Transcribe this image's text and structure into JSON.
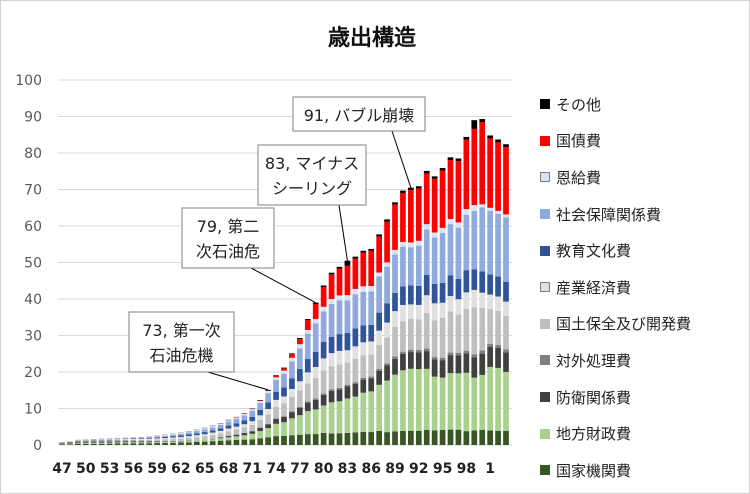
{
  "chart_data": {
    "type": "bar",
    "stacked": true,
    "title": "歳出構造",
    "ylim": [
      0,
      100
    ],
    "yticks": [
      0,
      10,
      20,
      30,
      40,
      50,
      60,
      70,
      80,
      90,
      100
    ],
    "years": [
      "47",
      "48",
      "49",
      "50",
      "51",
      "52",
      "53",
      "54",
      "55",
      "56",
      "57",
      "58",
      "59",
      "60",
      "61",
      "62",
      "63",
      "64",
      "65",
      "66",
      "67",
      "68",
      "69",
      "70",
      "71",
      "72",
      "73",
      "74",
      "75",
      "76",
      "77",
      "78",
      "79",
      "80",
      "81",
      "82",
      "83",
      "84",
      "85",
      "86",
      "87",
      "88",
      "89",
      "90",
      "91",
      "92",
      "93",
      "94",
      "95",
      "96",
      "97",
      "98",
      "99",
      "0",
      "1",
      "2",
      "3"
    ],
    "tick_labels": [
      "47",
      "50",
      "53",
      "56",
      "59",
      "62",
      "65",
      "68",
      "71",
      "74",
      "77",
      "80",
      "83",
      "86",
      "89",
      "92",
      "95",
      "98",
      "1"
    ],
    "tick_every": 3,
    "totals": [
      0.8,
      1.0,
      1.4,
      1.5,
      1.6,
      1.7,
      1.8,
      1.9,
      2.0,
      2.1,
      2.2,
      2.4,
      2.6,
      2.8,
      3.1,
      3.4,
      3.8,
      4.2,
      4.7,
      5.3,
      6.0,
      6.9,
      7.7,
      8.7,
      10.0,
      12.3,
      15.1,
      19.1,
      21.2,
      25.1,
      29.3,
      34.5,
      39.0,
      43.7,
      47.2,
      48.8,
      50.5,
      51.6,
      53.2,
      53.7,
      57.7,
      61.8,
      66.5,
      69.7,
      70.5,
      70.9,
      75.1,
      73.6,
      75.9,
      78.8,
      78.5,
      84.4,
      89.0,
      89.3,
      84.8,
      83.7,
      82.4
    ],
    "series": [
      {
        "name": "国家機関費",
        "color": "#375623",
        "share": [
          0.2,
          0.2,
          0.2,
          0.2,
          0.2,
          0.2,
          0.2,
          0.2,
          0.2,
          0.2,
          0.2,
          0.2,
          0.2,
          0.2,
          0.2,
          0.2,
          0.2,
          0.2,
          0.2,
          0.2,
          0.2,
          0.19,
          0.18,
          0.17,
          0.16,
          0.15,
          0.14,
          0.13,
          0.12,
          0.11,
          0.1,
          0.09,
          0.08,
          0.08,
          0.07,
          0.07,
          0.07,
          0.07,
          0.07,
          0.07,
          0.07,
          0.06,
          0.06,
          0.06,
          0.06,
          0.06,
          0.06,
          0.06,
          0.06,
          0.06,
          0.06,
          0.05,
          0.05,
          0.05,
          0.05,
          0.05,
          0.05
        ]
      },
      {
        "name": "地方財政費",
        "color": "#a9d18e",
        "share": [
          0.08,
          0.08,
          0.08,
          0.08,
          0.08,
          0.08,
          0.08,
          0.08,
          0.08,
          0.08,
          0.08,
          0.08,
          0.08,
          0.08,
          0.08,
          0.08,
          0.09,
          0.09,
          0.09,
          0.1,
          0.11,
          0.12,
          0.13,
          0.14,
          0.15,
          0.16,
          0.17,
          0.18,
          0.18,
          0.19,
          0.19,
          0.19,
          0.18,
          0.18,
          0.19,
          0.19,
          0.2,
          0.2,
          0.21,
          0.22,
          0.23,
          0.24,
          0.25,
          0.26,
          0.26,
          0.26,
          0.24,
          0.22,
          0.21,
          0.22,
          0.22,
          0.21,
          0.18,
          0.18,
          0.22,
          0.22,
          0.21
        ]
      },
      {
        "name": "防衛関係費",
        "color": "#404040",
        "share": [
          0.0,
          0.0,
          0.0,
          0.0,
          0.0,
          0.0,
          0.0,
          0.0,
          0.0,
          0.0,
          0.0,
          0.0,
          0.0,
          0.0,
          0.0,
          0.0,
          0.0,
          0.0,
          0.0,
          0.02,
          0.04,
          0.05,
          0.06,
          0.07,
          0.07,
          0.07,
          0.07,
          0.07,
          0.07,
          0.07,
          0.07,
          0.07,
          0.07,
          0.07,
          0.07,
          0.07,
          0.07,
          0.07,
          0.07,
          0.07,
          0.07,
          0.07,
          0.07,
          0.07,
          0.07,
          0.07,
          0.07,
          0.07,
          0.07,
          0.07,
          0.07,
          0.07,
          0.07,
          0.07,
          0.07,
          0.07,
          0.07
        ]
      },
      {
        "name": "対外処理費",
        "color": "#7f7f7f",
        "share": [
          0.55,
          0.55,
          0.55,
          0.5,
          0.5,
          0.45,
          0.4,
          0.35,
          0.3,
          0.28,
          0.25,
          0.2,
          0.15,
          0.1,
          0.08,
          0.05,
          0.04,
          0.03,
          0.02,
          0.01,
          0.01,
          0.01,
          0.01,
          0.01,
          0.01,
          0.01,
          0.01,
          0.01,
          0.01,
          0.01,
          0.01,
          0.01,
          0.01,
          0.01,
          0.01,
          0.01,
          0.01,
          0.01,
          0.01,
          0.01,
          0.01,
          0.01,
          0.01,
          0.01,
          0.01,
          0.01,
          0.01,
          0.01,
          0.01,
          0.01,
          0.01,
          0.01,
          0.01,
          0.01,
          0.01,
          0.01,
          0.01
        ]
      },
      {
        "name": "国土保全及び開発費",
        "color": "#bfbfbf",
        "share": [
          0.05,
          0.05,
          0.05,
          0.05,
          0.05,
          0.05,
          0.06,
          0.07,
          0.08,
          0.09,
          0.1,
          0.12,
          0.14,
          0.16,
          0.17,
          0.18,
          0.19,
          0.2,
          0.2,
          0.19,
          0.18,
          0.18,
          0.18,
          0.17,
          0.17,
          0.17,
          0.17,
          0.17,
          0.17,
          0.16,
          0.16,
          0.15,
          0.15,
          0.15,
          0.14,
          0.14,
          0.13,
          0.13,
          0.12,
          0.12,
          0.12,
          0.12,
          0.13,
          0.13,
          0.13,
          0.13,
          0.14,
          0.15,
          0.16,
          0.16,
          0.15,
          0.15,
          0.16,
          0.14,
          0.12,
          0.12,
          0.12
        ]
      },
      {
        "name": "産業経済費",
        "color": "#e0e0e0",
        "share": [
          0.05,
          0.05,
          0.05,
          0.05,
          0.05,
          0.06,
          0.07,
          0.08,
          0.09,
          0.1,
          0.11,
          0.12,
          0.12,
          0.13,
          0.13,
          0.13,
          0.13,
          0.13,
          0.13,
          0.12,
          0.11,
          0.11,
          0.1,
          0.1,
          0.1,
          0.1,
          0.1,
          0.1,
          0.09,
          0.09,
          0.09,
          0.09,
          0.08,
          0.08,
          0.08,
          0.08,
          0.07,
          0.07,
          0.07,
          0.07,
          0.07,
          0.07,
          0.07,
          0.07,
          0.06,
          0.06,
          0.07,
          0.07,
          0.06,
          0.06,
          0.06,
          0.06,
          0.06,
          0.05,
          0.05,
          0.05,
          0.05
        ]
      },
      {
        "name": "教育文化費",
        "color": "#2f5597",
        "share": [
          0.02,
          0.02,
          0.02,
          0.03,
          0.03,
          0.04,
          0.04,
          0.05,
          0.06,
          0.07,
          0.08,
          0.09,
          0.1,
          0.11,
          0.12,
          0.13,
          0.13,
          0.13,
          0.13,
          0.12,
          0.12,
          0.12,
          0.12,
          0.12,
          0.12,
          0.12,
          0.12,
          0.12,
          0.12,
          0.12,
          0.12,
          0.11,
          0.11,
          0.11,
          0.1,
          0.1,
          0.1,
          0.1,
          0.09,
          0.09,
          0.09,
          0.09,
          0.08,
          0.08,
          0.08,
          0.08,
          0.08,
          0.08,
          0.08,
          0.08,
          0.08,
          0.08,
          0.07,
          0.07,
          0.07,
          0.07,
          0.07
        ]
      },
      {
        "name": "社会保障関係費",
        "color": "#8faadc",
        "share": [
          0.02,
          0.02,
          0.02,
          0.03,
          0.03,
          0.04,
          0.05,
          0.06,
          0.07,
          0.08,
          0.09,
          0.1,
          0.11,
          0.12,
          0.13,
          0.14,
          0.15,
          0.15,
          0.16,
          0.16,
          0.16,
          0.16,
          0.16,
          0.16,
          0.16,
          0.16,
          0.17,
          0.17,
          0.18,
          0.19,
          0.2,
          0.21,
          0.21,
          0.2,
          0.2,
          0.2,
          0.19,
          0.19,
          0.18,
          0.18,
          0.18,
          0.17,
          0.17,
          0.17,
          0.16,
          0.17,
          0.18,
          0.19,
          0.2,
          0.2,
          0.2,
          0.2,
          0.2,
          0.21,
          0.22,
          0.22,
          0.23
        ]
      },
      {
        "name": "恩給費",
        "color": "#dae3f3",
        "share": [
          0.01,
          0.01,
          0.01,
          0.01,
          0.01,
          0.01,
          0.01,
          0.02,
          0.03,
          0.04,
          0.05,
          0.06,
          0.07,
          0.07,
          0.07,
          0.07,
          0.07,
          0.07,
          0.07,
          0.06,
          0.06,
          0.05,
          0.05,
          0.05,
          0.05,
          0.04,
          0.04,
          0.04,
          0.04,
          0.04,
          0.04,
          0.03,
          0.03,
          0.03,
          0.03,
          0.03,
          0.03,
          0.03,
          0.03,
          0.03,
          0.02,
          0.02,
          0.02,
          0.02,
          0.02,
          0.02,
          0.02,
          0.02,
          0.02,
          0.02,
          0.02,
          0.02,
          0.02,
          0.01,
          0.01,
          0.01,
          0.01
        ]
      },
      {
        "name": "国債費",
        "color": "#ff0000",
        "share": [
          0.01,
          0.01,
          0.01,
          0.01,
          0.01,
          0.01,
          0.01,
          0.01,
          0.01,
          0.01,
          0.01,
          0.01,
          0.01,
          0.01,
          0.01,
          0.01,
          0.01,
          0.01,
          0.01,
          0.01,
          0.01,
          0.01,
          0.01,
          0.01,
          0.01,
          0.01,
          0.01,
          0.02,
          0.03,
          0.04,
          0.05,
          0.08,
          0.11,
          0.13,
          0.15,
          0.16,
          0.17,
          0.17,
          0.18,
          0.19,
          0.18,
          0.19,
          0.2,
          0.21,
          0.22,
          0.22,
          0.2,
          0.22,
          0.23,
          0.23,
          0.24,
          0.25,
          0.26,
          0.27,
          0.24,
          0.24,
          0.24
        ]
      },
      {
        "name": "その他",
        "color": "#000000",
        "share": [
          0.01,
          0.01,
          0.01,
          0.01,
          0.01,
          0.01,
          0.01,
          0.01,
          0.01,
          0.01,
          0.01,
          0.01,
          0.01,
          0.01,
          0.01,
          0.01,
          0.01,
          0.01,
          0.01,
          0.01,
          0.01,
          0.01,
          0.01,
          0.01,
          0.01,
          0.01,
          0.01,
          0.01,
          0.01,
          0.01,
          0.01,
          0.01,
          0.01,
          0.01,
          0.01,
          0.01,
          0.03,
          0.01,
          0.01,
          0.01,
          0.01,
          0.01,
          0.01,
          0.01,
          0.01,
          0.01,
          0.01,
          0.01,
          0.01,
          0.01,
          0.01,
          0.01,
          0.03,
          0.01,
          0.01,
          0.01,
          0.01
        ]
      }
    ],
    "annotations": [
      {
        "lines": [
          "73, 第一次",
          "石油危機"
        ],
        "year": "73"
      },
      {
        "lines": [
          "79, 第二",
          "次石油危"
        ],
        "year": "79"
      },
      {
        "lines": [
          "83, マイナス",
          "シーリング"
        ],
        "year": "83"
      },
      {
        "lines": [
          "91, バブル崩壊"
        ],
        "year": "91"
      }
    ],
    "legend_order": [
      "その他",
      "国債費",
      "恩給費",
      "社会保障関係費",
      "教育文化費",
      "産業経済費",
      "国土保全及び開発費",
      "対外処理費",
      "防衛関係費",
      "地方財政費",
      "国家機関費"
    ],
    "grid": true,
    "legend_position": "right"
  }
}
